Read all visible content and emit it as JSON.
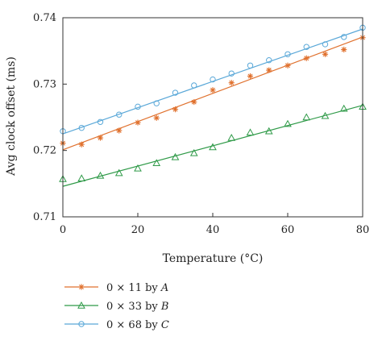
{
  "chart_data": {
    "type": "scatter",
    "title": "",
    "xlabel": "Temperature (°C)",
    "ylabel": "Avg clock offset (ms)",
    "xlim": [
      0,
      80
    ],
    "ylim": [
      0.71,
      0.74
    ],
    "xticks": [
      {
        "value": 0,
        "label": "0"
      },
      {
        "value": 20,
        "label": "20"
      },
      {
        "value": 40,
        "label": "40"
      },
      {
        "value": 60,
        "label": "60"
      },
      {
        "value": 80,
        "label": "80"
      }
    ],
    "yticks": [
      {
        "value": 0.71,
        "label": "0.71"
      },
      {
        "value": 0.72,
        "label": "0.72"
      },
      {
        "value": 0.73,
        "label": "0.73"
      },
      {
        "value": 0.74,
        "label": "0.74"
      }
    ],
    "grid": false,
    "legend_placement": "below",
    "x": [
      0,
      5,
      10,
      15,
      20,
      25,
      30,
      35,
      40,
      45,
      50,
      55,
      60,
      65,
      70,
      75,
      80
    ],
    "series": [
      {
        "legend": {
          "prefix": "0 × 11 by ",
          "variable": "A"
        },
        "color": "#e0712e",
        "marker": "asterisk",
        "values": [
          0.7211,
          0.7209,
          0.7219,
          0.723,
          0.7242,
          0.7249,
          0.7262,
          0.7273,
          0.7291,
          0.7302,
          0.7312,
          0.7321,
          0.7328,
          0.7339,
          0.7345,
          0.7352,
          0.737
        ],
        "fit": [
          0.7201,
          0.7371
        ]
      },
      {
        "legend": {
          "prefix": "0 × 33 by ",
          "variable": "B"
        },
        "color": "#2f9a48",
        "marker": "triangle",
        "values": [
          0.7157,
          0.7158,
          0.7162,
          0.7166,
          0.7173,
          0.7181,
          0.719,
          0.7196,
          0.7205,
          0.7219,
          0.7227,
          0.7229,
          0.724,
          0.725,
          0.7252,
          0.7263,
          0.7266
        ],
        "fit": [
          0.7146,
          0.7268
        ]
      },
      {
        "legend": {
          "prefix": "0 × 68 by ",
          "variable": "C"
        },
        "color": "#5aa8d8",
        "marker": "circle",
        "values": [
          0.7229,
          0.7234,
          0.7243,
          0.7254,
          0.7266,
          0.7271,
          0.7287,
          0.7298,
          0.7307,
          0.7316,
          0.7328,
          0.7336,
          0.7345,
          0.7356,
          0.736,
          0.7371,
          0.7385
        ],
        "fit": [
          0.7225,
          0.7383
        ]
      }
    ]
  }
}
